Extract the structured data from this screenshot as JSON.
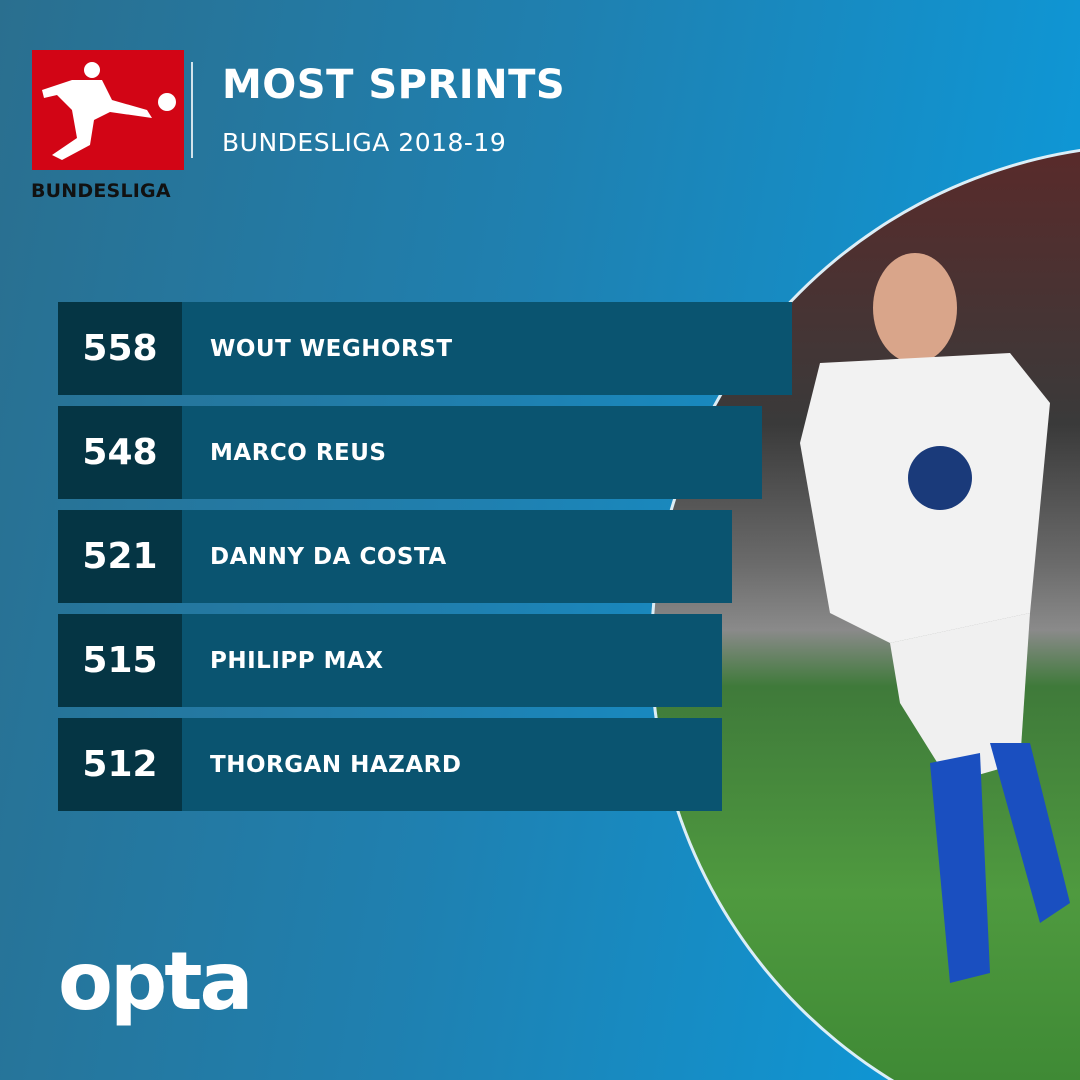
{
  "header": {
    "logo_text": "BUNDESLIGA",
    "title": "MOST SPRINTS",
    "subtitle": "BUNDESLIGA 2018-19"
  },
  "rows": [
    {
      "value": "558",
      "player": "WOUT WEGHORST"
    },
    {
      "value": "548",
      "player": "MARCO REUS"
    },
    {
      "value": "521",
      "player": "DANNY DA COSTA"
    },
    {
      "value": "515",
      "player": "PHILIPP MAX"
    },
    {
      "value": "512",
      "player": "THORGAN HAZARD"
    }
  ],
  "footer": {
    "brand": "opta"
  },
  "colors": {
    "brand_red": "#d20515",
    "number_cell": "#053544",
    "name_bar": "#0a5470",
    "background_right": "#0a9de0"
  }
}
